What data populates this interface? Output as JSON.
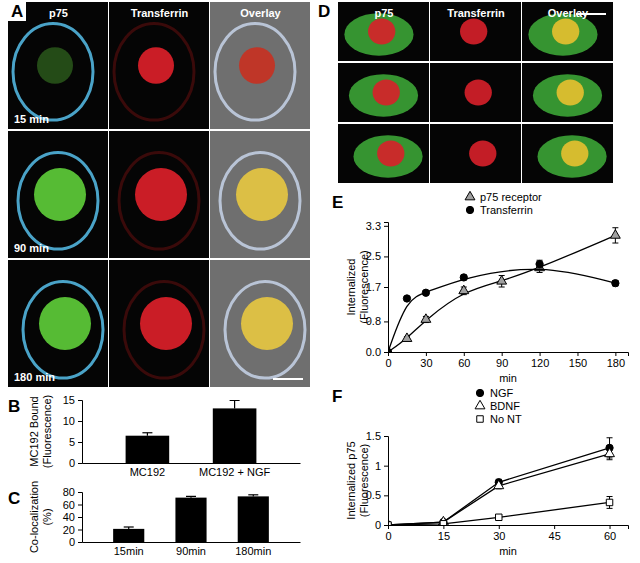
{
  "chart_data": [
    {
      "type": "bar",
      "title": "B",
      "ylabel": [
        "MC192 Bound",
        "(Fluorescence)"
      ],
      "categories": [
        "MC192",
        "MC192 + NGF"
      ],
      "values": [
        6.5,
        13
      ],
      "errors": [
        0.7,
        1.9
      ],
      "color": "#000000",
      "ylim": [
        0,
        15
      ],
      "yticks": [
        0,
        5,
        10,
        15
      ]
    },
    {
      "type": "bar",
      "title": "C",
      "ylabel": [
        "Co-localization",
        "(%)"
      ],
      "categories": [
        "15min",
        "90min",
        "180min"
      ],
      "values": [
        21,
        71,
        73
      ],
      "errors": [
        3,
        2,
        2.5
      ],
      "color": "#000000",
      "ylim": [
        0,
        80
      ],
      "yticks": [
        0,
        20,
        40,
        60,
        80
      ]
    },
    {
      "type": "line",
      "title": "E",
      "ylabel": [
        "Internalized",
        "(Fluorescence)"
      ],
      "xlabel": "min",
      "xlim": [
        0,
        190
      ],
      "xticks": [
        0,
        30,
        60,
        90,
        120,
        150,
        180
      ],
      "ylim": [
        0,
        3.4
      ],
      "yticks": [
        {
          "value": 0,
          "label": "0.0"
        },
        0.8,
        1.7,
        2.5,
        3.3
      ],
      "legend": "top",
      "series": [
        {
          "name": "p75 receptor",
          "color": "#a0a0a0",
          "marker": "triangle",
          "line_style": "smooth",
          "x": [
            0,
            15,
            30,
            60,
            90,
            120,
            180
          ],
          "values": [
            0,
            0.35,
            0.85,
            1.6,
            1.85,
            2.2,
            3.05
          ],
          "errors": [
            0,
            0.05,
            0.08,
            0.1,
            0.15,
            0.12,
            0.2
          ]
        },
        {
          "name": "Transferrin",
          "color": "#000000",
          "marker": "circle",
          "line_style": "smooth",
          "x": [
            0,
            15,
            30,
            60,
            120,
            180
          ],
          "values": [
            0,
            1.4,
            1.55,
            1.95,
            2.3,
            1.8
          ],
          "errors": [
            0,
            0.05,
            0.05,
            0.06,
            0.1,
            0.07
          ]
        }
      ]
    },
    {
      "type": "line",
      "title": "F",
      "ylabel": [
        "Internalized p75",
        "(Fluorescence)"
      ],
      "xlabel": "min",
      "xlim": [
        0,
        65
      ],
      "xticks": [
        0,
        15,
        30,
        45,
        60
      ],
      "ylim": [
        0,
        1.5
      ],
      "yticks": [
        0,
        0.5,
        1,
        1.5
      ],
      "legend": "top",
      "series": [
        {
          "name": "NGF",
          "color": "#000000",
          "marker": "circle",
          "line_style": "solid",
          "x": [
            0,
            15,
            30,
            60
          ],
          "values": [
            0,
            0.05,
            0.72,
            1.3
          ],
          "errors": [
            0,
            0.02,
            0.05,
            0.17
          ]
        },
        {
          "name": "BDNF",
          "color": "#ffffff",
          "marker": "triangle",
          "line_style": "solid",
          "x": [
            0,
            15,
            30,
            60
          ],
          "values": [
            0,
            0.05,
            0.66,
            1.2
          ],
          "errors": [
            0,
            0.02,
            0.05,
            0.1
          ]
        },
        {
          "name": "No NT",
          "color": "#ffffff",
          "marker": "square",
          "line_style": "solid",
          "x": [
            0,
            15,
            30,
            60
          ],
          "values": [
            0,
            0.02,
            0.13,
            0.38
          ],
          "errors": [
            0,
            0.01,
            0.02,
            0.1
          ]
        }
      ]
    }
  ],
  "images": [
    {
      "title": "A",
      "columns": [
        "p75",
        "Transferrin",
        "Overlay"
      ],
      "rows": [
        "15 min",
        "90 min",
        "180 min"
      ]
    },
    {
      "title": "D",
      "columns": [
        "p75",
        "Transferrin",
        "Overlay"
      ]
    }
  ]
}
